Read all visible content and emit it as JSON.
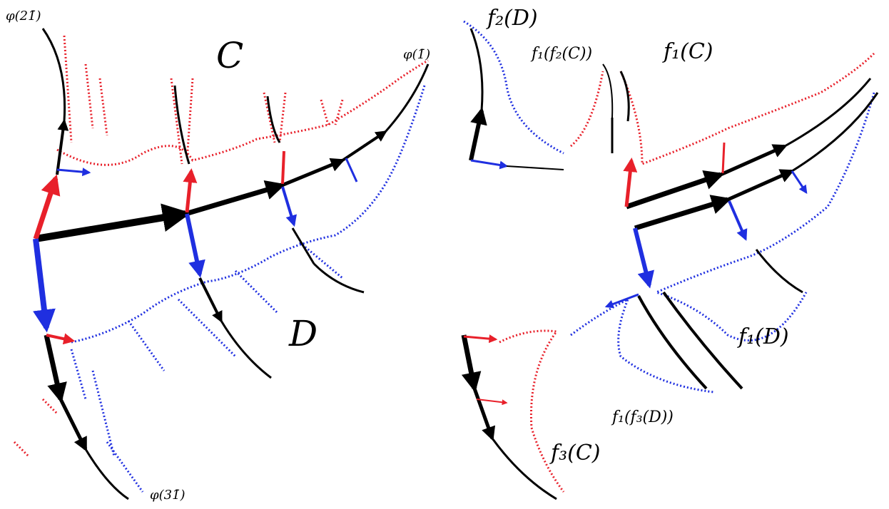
{
  "colors": {
    "red": "#e8202a",
    "blue": "#1f2fe0",
    "black": "#000000"
  },
  "left_panel": {
    "label_C": "C",
    "label_D": "D",
    "label_phi_2bar1": "φ(21̄)",
    "label_phi_bar1": "φ(1̄)",
    "label_phi_3bar1": "φ(31̄)"
  },
  "right_panel": {
    "label_f2D": "f₂(D)",
    "label_f1f2C": "f₁(f₂(C))",
    "label_f1C": "f₁(C)",
    "label_f1D": "f₁(D)",
    "label_f1f3D": "f₁(f₃(D))",
    "label_f3C": "f₃(C)"
  }
}
